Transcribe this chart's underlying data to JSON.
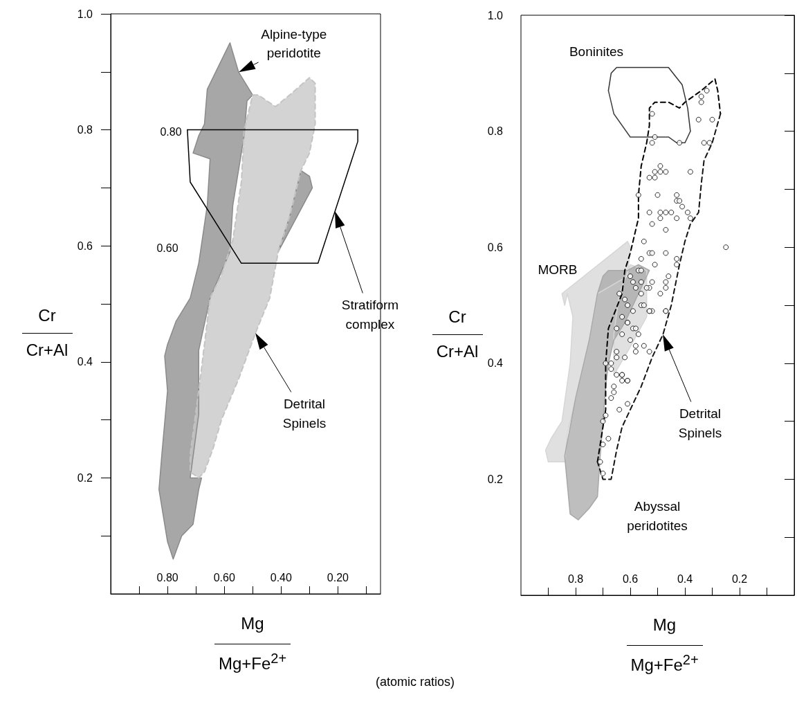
{
  "chart_data": [
    {
      "type": "area",
      "xlabel": "Mg\nMg+Fe$^{2+}$",
      "ylabel": "Cr\nCr+Al",
      "xlim": [
        1.0,
        0.05
      ],
      "ylim": [
        0,
        1
      ],
      "xticks": [
        {
          "value": 0.9,
          "label": null
        },
        {
          "value": 0.8,
          "label": "0.80"
        },
        {
          "value": 0.7,
          "label": null
        },
        {
          "value": 0.6,
          "label": "0.60"
        },
        {
          "value": 0.5,
          "label": null
        },
        {
          "value": 0.4,
          "label": "0.40"
        },
        {
          "value": 0.3,
          "label": null
        },
        {
          "value": 0.2,
          "label": "0.20"
        },
        {
          "value": 0.1,
          "label": null
        }
      ],
      "yticks": [
        {
          "value": 0.1,
          "label": null
        },
        0.2,
        {
          "value": 0.3,
          "label": null
        },
        0.4,
        {
          "value": 0.5,
          "label": null
        },
        0.6,
        {
          "value": 0.7,
          "label": null
        },
        0.8,
        {
          "value": 0.9,
          "label": null
        },
        {
          "value": 1.0,
          "label": "1.0"
        }
      ],
      "series": [
        {
          "color": "#8a8a8a",
          "line_style": "solid",
          "x": [
            0.58,
            0.55,
            0.5,
            0.52,
            0.53,
            0.55,
            0.57,
            0.58,
            0.65,
            0.69,
            0.69,
            0.72,
            0.68,
            0.69,
            0.71,
            0.75,
            0.78,
            0.8,
            0.83,
            0.82,
            0.8,
            0.81,
            0.8,
            0.77,
            0.72,
            0.69,
            0.66,
            0.65,
            0.71,
            0.69,
            0.67,
            0.66,
            0.65,
            null,
            0.33,
            0.3,
            0.29,
            0.41,
            0.37,
            0.34
          ],
          "values": [
            0.95,
            0.9,
            0.86,
            0.85,
            0.79,
            0.73,
            0.67,
            0.59,
            0.51,
            0.42,
            0.31,
            0.2,
            0.2,
            0.18,
            0.12,
            0.1,
            0.06,
            0.09,
            0.18,
            0.24,
            0.35,
            0.41,
            0.43,
            0.47,
            0.51,
            0.57,
            0.67,
            0.75,
            0.76,
            0.79,
            0.81,
            0.87,
            0.88,
            null,
            0.73,
            0.72,
            0.7,
            0.59,
            0.65,
            0.71
          ]
        },
        {
          "color": "#c4c4c4",
          "line_style": "dashed",
          "x": [
            0.5,
            0.48,
            0.42,
            0.37,
            0.3,
            0.28,
            0.28,
            0.3,
            0.33,
            0.34,
            0.37,
            0.41,
            0.44,
            0.49,
            0.55,
            0.61,
            0.64,
            0.67,
            0.69,
            0.72,
            0.72,
            0.69,
            0.66,
            0.65,
            0.61,
            0.57,
            0.54,
            0.53
          ],
          "values": [
            0.86,
            0.86,
            0.84,
            0.86,
            0.89,
            0.88,
            0.81,
            0.76,
            0.73,
            0.71,
            0.65,
            0.59,
            0.51,
            0.45,
            0.37,
            0.3,
            0.25,
            0.21,
            0.2,
            0.21,
            0.24,
            0.35,
            0.47,
            0.51,
            0.55,
            0.61,
            0.71,
            0.8
          ]
        },
        {
          "type": "line",
          "color": "#000000",
          "line_style": "solid",
          "x": [
            0.73,
            0.13
          ],
          "values": [
            0.8,
            0.8
          ]
        },
        {
          "type": "line",
          "color": "#000000",
          "line_style": "solid",
          "x": [
            0.73,
            0.72,
            0.54,
            0.27,
            0.13,
            0.13
          ],
          "values": [
            0.8,
            0.71,
            0.57,
            0.57,
            0.78,
            0.8
          ]
        }
      ],
      "annotations": [
        {
          "text": "Alpine-type\nperidotite",
          "x": 0.55,
          "y": 0.9
        },
        "Stratiform\ncomplex",
        "Detrital\nSpinels",
        "0.80",
        "0.60"
      ]
    },
    {
      "type": "area",
      "xlabel": "Mg\nMg+Fe$^{2+}$",
      "ylabel": "Cr\nCr+Al",
      "xlim": [
        1.0,
        0.0
      ],
      "ylim": [
        0,
        1
      ],
      "xticks": [
        {
          "value": 0.9,
          "label": null
        },
        0.8,
        {
          "value": 0.7,
          "label": null
        },
        0.6,
        {
          "value": 0.5,
          "label": null
        },
        0.4,
        {
          "value": 0.3,
          "label": null
        },
        0.2,
        {
          "value": 0.1,
          "label": null
        }
      ],
      "yticks": [
        {
          "value": 0.1,
          "label": null
        },
        0.2,
        {
          "value": 0.3,
          "label": null
        },
        0.4,
        {
          "value": 0.5,
          "label": null
        },
        0.6,
        {
          "value": 0.7,
          "label": null
        },
        0.8,
        {
          "value": 0.9,
          "label": null
        },
        {
          "value": 1.0,
          "label": "1.0"
        }
      ],
      "series": [
        {
          "color": "#d6d6d6",
          "line_style": "solid",
          "x": [
            0.85,
            0.61,
            0.6,
            0.61,
            0.72,
            0.75,
            0.8,
            0.83,
            0.84,
            0.9,
            0.91,
            0.89,
            0.85,
            0.82,
            0.81,
            0.83,
            0.84,
            null,
            0.54,
            0.54,
            0.61,
            0.66,
            0.66,
            0.64,
            0.6
          ],
          "values": [
            0.52,
            0.61,
            0.6,
            0.55,
            0.52,
            0.44,
            0.34,
            0.28,
            0.23,
            0.23,
            0.25,
            0.27,
            0.3,
            0.4,
            0.48,
            0.52,
            0.5,
            null,
            0.56,
            0.48,
            0.42,
            0.38,
            0.45,
            0.52,
            0.57
          ]
        },
        {
          "color": "#a8a8a8",
          "line_style": "solid",
          "x": [
            0.68,
            0.61,
            0.57,
            0.53,
            0.62,
            0.66,
            0.68,
            0.69,
            0.7,
            0.71,
            0.72,
            0.75,
            0.79,
            0.82,
            0.84,
            0.8,
            0.75,
            0.72,
            0.7
          ],
          "values": [
            0.56,
            0.56,
            0.57,
            0.56,
            0.47,
            0.44,
            0.4,
            0.36,
            0.3,
            0.24,
            0.17,
            0.15,
            0.13,
            0.14,
            0.24,
            0.34,
            0.44,
            0.52,
            0.55
          ]
        },
        {
          "type": "line",
          "color": "#000000",
          "line_style": "dashed",
          "x": [
            0.72,
            0.69,
            0.69,
            0.68,
            0.63,
            0.62,
            0.6,
            0.57,
            0.57,
            0.56,
            0.54,
            0.53,
            0.53,
            0.51,
            0.46,
            0.42,
            0.4,
            0.34,
            0.29,
            0.28,
            0.27
          ],
          "values": [
            0.23,
            0.32,
            0.4,
            0.46,
            0.52,
            0.56,
            0.59,
            0.65,
            0.69,
            0.74,
            0.78,
            0.81,
            0.84,
            0.85,
            0.85,
            0.84,
            0.85,
            0.87,
            0.89,
            0.87,
            0.83
          ]
        },
        {
          "type": "line",
          "color": "#141414",
          "line_style": "dashed",
          "x": [
            0.27,
            0.3,
            0.33,
            0.34,
            0.35,
            0.38,
            0.4,
            0.42,
            0.45,
            0.48,
            0.52,
            0.56,
            0.6,
            0.63,
            0.65,
            0.67,
            0.7,
            0.72
          ],
          "values": [
            0.83,
            0.78,
            0.75,
            0.71,
            0.66,
            0.64,
            0.61,
            0.57,
            0.5,
            0.45,
            0.41,
            0.36,
            0.32,
            0.29,
            0.25,
            0.2,
            0.2,
            0.23
          ]
        },
        {
          "type": "line",
          "color": "#333333",
          "line_style": "solid",
          "x": [
            0.68,
            0.67,
            0.65,
            0.49,
            0.46,
            0.41,
            0.39,
            0.38
          ],
          "values": [
            0.87,
            0.9,
            0.91,
            0.91,
            0.91,
            0.88,
            0.84,
            0.8
          ]
        },
        {
          "type": "line",
          "color": "#404040",
          "line_style": "solid",
          "x": [
            0.68,
            0.66,
            0.6,
            0.5,
            0.46,
            0.43,
            0.4,
            0.38
          ],
          "values": [
            0.87,
            0.83,
            0.79,
            0.79,
            0.79,
            0.78,
            0.78,
            0.8
          ]
        },
        {
          "type": "scatter",
          "color": "#000000",
          "marker": "circle",
          "x": [
            0.32,
            0.34,
            0.34,
            0.52,
            0.35,
            0.3,
            0.51,
            0.52,
            0.42,
            0.33,
            0.31,
            0.49,
            0.49,
            0.51,
            0.47,
            0.53,
            0.51,
            0.38,
            0.57,
            0.5,
            0.43,
            0.43,
            0.42,
            0.41,
            0.39,
            0.38,
            0.53,
            0.49,
            0.49,
            0.47,
            0.45,
            0.43,
            0.52,
            0.47,
            0.55,
            0.25,
            0.56,
            0.53,
            0.52,
            0.47,
            0.51,
            0.43,
            0.43,
            0.46,
            0.47,
            0.57,
            0.56,
            0.6,
            0.59,
            0.58,
            0.56,
            0.56,
            0.52,
            0.53,
            0.54,
            0.47,
            0.49,
            0.64,
            0.62,
            0.61,
            0.56,
            0.55,
            0.52,
            0.47,
            0.53,
            0.53,
            0.47,
            0.59,
            0.61,
            0.63,
            0.61,
            0.59,
            0.57,
            0.58,
            0.65,
            0.63,
            0.6,
            0.58,
            0.55,
            0.53,
            0.58,
            0.65,
            0.65,
            0.62,
            0.69,
            0.67,
            0.67,
            0.63,
            0.65,
            0.63,
            0.61,
            0.61,
            0.63,
            0.66,
            0.66,
            0.67,
            0.61,
            0.64,
            0.69,
            0.7,
            0.68,
            0.7,
            0.71,
            0.7
          ],
          "values": [
            0.87,
            0.86,
            0.85,
            0.83,
            0.82,
            0.82,
            0.79,
            0.78,
            0.78,
            0.78,
            0.78,
            0.74,
            0.73,
            0.73,
            0.73,
            0.72,
            0.72,
            0.73,
            0.69,
            0.69,
            0.69,
            0.68,
            0.68,
            0.67,
            0.66,
            0.65,
            0.66,
            0.66,
            0.65,
            0.66,
            0.66,
            0.65,
            0.64,
            0.63,
            0.61,
            0.6,
            0.58,
            0.59,
            0.59,
            0.59,
            0.57,
            0.58,
            0.57,
            0.55,
            0.54,
            0.56,
            0.56,
            0.55,
            0.54,
            0.53,
            0.54,
            0.52,
            0.54,
            0.53,
            0.53,
            0.53,
            0.52,
            0.52,
            0.51,
            0.5,
            0.5,
            0.5,
            0.49,
            0.49,
            0.49,
            0.49,
            0.49,
            0.49,
            0.47,
            0.48,
            0.47,
            0.46,
            0.45,
            0.46,
            0.46,
            0.45,
            0.44,
            0.43,
            0.43,
            0.42,
            0.42,
            0.42,
            0.41,
            0.41,
            0.4,
            0.4,
            0.39,
            0.38,
            0.38,
            0.38,
            0.37,
            0.37,
            0.37,
            0.36,
            0.35,
            0.34,
            0.33,
            0.32,
            0.31,
            0.3,
            0.27,
            0.26,
            0.23,
            0.21
          ]
        }
      ],
      "annotations": [
        "Boninites",
        "MORB",
        "Detrital\nSpinels",
        "Abyssal\nperidotites",
        "(atomic ratios)"
      ]
    }
  ]
}
